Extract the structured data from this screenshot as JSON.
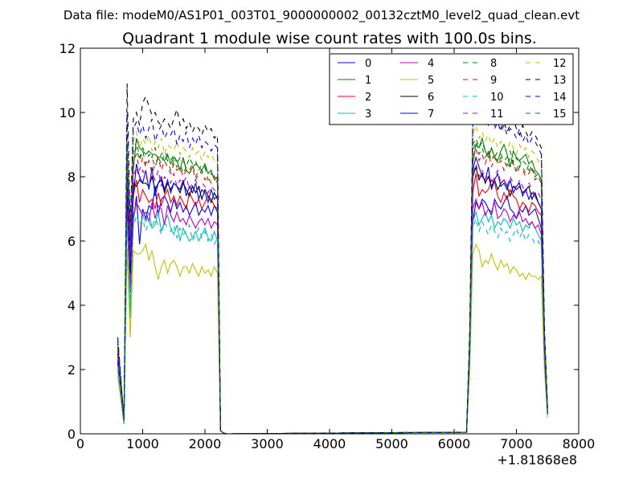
{
  "figure": {
    "suptitle": "Data file: modeM0/AS1P01_003T01_9000000002_00132cztM0_level2_quad_clean.evt",
    "x_offset_label": "+1.81868e8"
  },
  "chart_data": {
    "type": "line",
    "title": "Quadrant 1 module wise count rates with 100.0s bins.",
    "xlabel": "",
    "ylabel": "",
    "x_offset": 181868000,
    "xlim": [
      0,
      8000
    ],
    "ylim": [
      0,
      12
    ],
    "x_ticks": [
      0,
      1000,
      2000,
      3000,
      4000,
      5000,
      6000,
      7000,
      8000
    ],
    "y_ticks": [
      0,
      2,
      4,
      6,
      8,
      10,
      12
    ],
    "x_tick_labels": [
      "0",
      "1000",
      "2000",
      "3000",
      "4000",
      "5000",
      "6000",
      "7000",
      "8000"
    ],
    "y_tick_labels": [
      "0",
      "2",
      "4",
      "6",
      "8",
      "10",
      "12"
    ],
    "grid": false,
    "legend_position": "top-right",
    "legend_columns": 4,
    "x": [
      600,
      700,
      750,
      800,
      850,
      900,
      950,
      1000,
      1050,
      1100,
      1150,
      1200,
      1250,
      1300,
      1350,
      1400,
      1450,
      1500,
      1550,
      1600,
      1650,
      1700,
      1750,
      1800,
      1850,
      1900,
      1950,
      2000,
      2050,
      2100,
      2150,
      2200,
      2250,
      2300,
      2350,
      2400,
      6200,
      6250,
      6300,
      6350,
      6400,
      6450,
      6500,
      6550,
      6600,
      6650,
      6700,
      6750,
      6800,
      6850,
      6900,
      6950,
      7000,
      7050,
      7100,
      7150,
      7200,
      7250,
      7300,
      7350,
      7400,
      7450,
      7500
    ],
    "series": [
      {
        "name": "0",
        "color": "#0000ff",
        "style": "solid",
        "values": [
          2.2,
          0.4,
          7.4,
          4.6,
          6.6,
          7.4,
          5.9,
          7.0,
          6.7,
          7.1,
          7.0,
          7.7,
          6.8,
          7.3,
          7.4,
          7.2,
          6.9,
          7.3,
          7.0,
          7.2,
          6.9,
          7.1,
          6.8,
          7.0,
          7.2,
          6.8,
          7.0,
          6.9,
          7.1,
          6.8,
          7.1,
          6.9,
          0.1,
          0.02,
          0,
          0,
          0.05,
          2.4,
          6.6,
          7.2,
          7.0,
          7.3,
          7.2,
          7.0,
          6.8,
          7.3,
          7.1,
          7.0,
          7.2,
          7.4,
          7.0,
          6.9,
          6.7,
          7.0,
          6.9,
          7.1,
          6.8,
          6.9,
          7.0,
          6.7,
          6.4,
          2.5,
          0.6
        ]
      },
      {
        "name": "1",
        "color": "#008000",
        "style": "solid",
        "values": [
          2.6,
          0.4,
          8.6,
          5.6,
          8.2,
          9.2,
          8.9,
          8.8,
          8.7,
          8.8,
          8.7,
          8.7,
          8.6,
          8.6,
          8.5,
          8.7,
          8.4,
          8.6,
          8.5,
          8.2,
          8.6,
          8.2,
          8.1,
          8.3,
          8.4,
          8.3,
          8.2,
          8.4,
          8.1,
          8.2,
          7.9,
          8.0,
          0.1,
          0.02,
          0,
          0,
          0.05,
          2.8,
          8.4,
          9.0,
          8.9,
          9.2,
          8.8,
          8.6,
          8.9,
          8.6,
          8.5,
          8.8,
          9.0,
          8.7,
          8.3,
          8.8,
          8.6,
          8.5,
          8.6,
          8.7,
          8.4,
          8.5,
          8.2,
          8.1,
          7.9,
          3.0,
          0.7
        ]
      },
      {
        "name": "2",
        "color": "#ff0000",
        "style": "solid",
        "values": [
          2.4,
          0.4,
          8.0,
          4.8,
          7.4,
          7.9,
          7.2,
          7.6,
          7.4,
          7.2,
          7.3,
          7.0,
          7.5,
          7.1,
          7.4,
          7.6,
          7.2,
          7.4,
          7.1,
          7.4,
          7.2,
          7.0,
          7.5,
          7.3,
          7.1,
          7.3,
          7.0,
          7.2,
          7.4,
          7.3,
          7.1,
          7.0,
          0.1,
          0.02,
          0,
          0,
          0.05,
          2.6,
          7.5,
          8.1,
          7.4,
          7.6,
          7.5,
          7.6,
          7.9,
          7.8,
          7.4,
          7.2,
          7.5,
          7.3,
          7.6,
          7.4,
          7.3,
          7.0,
          7.2,
          7.1,
          6.9,
          7.2,
          7.1,
          6.9,
          6.8,
          2.6,
          0.6
        ]
      },
      {
        "name": "3",
        "color": "#00bfbf",
        "style": "solid",
        "values": [
          2.0,
          0.3,
          7.0,
          3.6,
          6.6,
          7.2,
          7.0,
          6.8,
          6.6,
          6.9,
          6.4,
          6.5,
          6.9,
          6.3,
          6.6,
          6.8,
          6.4,
          6.2,
          6.5,
          6.0,
          6.4,
          6.2,
          6.0,
          6.1,
          6.3,
          6.0,
          6.2,
          6.4,
          6.1,
          6.0,
          6.3,
          6.0,
          0.1,
          0.02,
          0,
          0,
          0.05,
          2.3,
          6.6,
          6.9,
          6.5,
          6.7,
          6.9,
          6.6,
          6.8,
          6.4,
          6.6,
          6.5,
          6.7,
          6.6,
          6.4,
          6.7,
          6.5,
          6.6,
          6.3,
          6.5,
          6.4,
          6.6,
          6.4,
          6.2,
          6.0,
          2.3,
          0.6
        ]
      },
      {
        "name": "4",
        "color": "#bf00bf",
        "style": "solid",
        "values": [
          2.3,
          0.4,
          7.2,
          4.4,
          6.8,
          7.2,
          7.0,
          6.8,
          6.9,
          6.6,
          7.2,
          6.7,
          7.1,
          7.0,
          6.5,
          7.1,
          6.8,
          6.6,
          6.9,
          6.6,
          6.7,
          6.5,
          6.8,
          6.6,
          6.4,
          6.6,
          6.7,
          6.5,
          6.7,
          6.4,
          6.6,
          6.5,
          0.1,
          0.02,
          0,
          0,
          0.05,
          2.4,
          7.0,
          7.3,
          7.0,
          7.2,
          6.8,
          7.0,
          6.9,
          7.2,
          6.7,
          6.8,
          7.0,
          6.9,
          6.6,
          6.8,
          6.7,
          6.9,
          6.6,
          6.7,
          6.5,
          6.6,
          6.4,
          6.5,
          6.2,
          2.4,
          0.6
        ]
      },
      {
        "name": "5",
        "color": "#bfbf00",
        "style": "solid",
        "values": [
          1.8,
          0.3,
          5.8,
          3.0,
          5.7,
          5.6,
          5.6,
          5.7,
          5.9,
          5.4,
          5.7,
          5.2,
          4.8,
          5.2,
          5.4,
          5.0,
          5.3,
          5.4,
          5.2,
          4.9,
          5.2,
          5.2,
          5.0,
          5.3,
          5.1,
          4.9,
          5.2,
          5.0,
          5.1,
          4.9,
          5.2,
          5.0,
          0.08,
          0.02,
          0,
          0,
          0.04,
          1.9,
          5.6,
          5.9,
          5.7,
          5.2,
          5.4,
          5.3,
          5.6,
          5.3,
          5.1,
          5.4,
          5.2,
          5.3,
          5.0,
          5.2,
          5.1,
          4.9,
          5.0,
          4.8,
          5.0,
          4.9,
          4.9,
          4.8,
          4.9,
          2.0,
          0.5
        ]
      },
      {
        "name": "6",
        "color": "#000000",
        "style": "solid",
        "values": [
          2.5,
          0.4,
          8.0,
          5.0,
          7.8,
          7.7,
          7.9,
          7.8,
          7.8,
          7.7,
          8.0,
          7.6,
          7.8,
          7.9,
          7.5,
          7.8,
          7.6,
          7.8,
          7.7,
          7.5,
          7.8,
          7.6,
          7.4,
          7.7,
          7.5,
          7.7,
          7.3,
          7.6,
          7.4,
          7.2,
          7.5,
          7.3,
          0.1,
          0.02,
          0,
          0,
          0.05,
          2.6,
          8.0,
          8.3,
          7.9,
          8.1,
          7.8,
          8.0,
          7.7,
          7.9,
          7.6,
          7.8,
          7.9,
          7.7,
          7.4,
          7.7,
          7.6,
          7.7,
          7.5,
          7.6,
          7.7,
          7.3,
          7.5,
          7.2,
          7.0,
          2.6,
          0.6
        ]
      },
      {
        "name": "7",
        "color": "#0000ff",
        "style": "solid",
        "values": [
          2.3,
          0.4,
          7.8,
          5.2,
          7.4,
          8.4,
          8.0,
          7.8,
          8.2,
          7.6,
          8.3,
          7.4,
          7.8,
          8.0,
          7.6,
          7.9,
          7.5,
          7.8,
          7.7,
          7.6,
          7.9,
          7.4,
          7.7,
          7.5,
          7.8,
          7.3,
          7.6,
          7.5,
          7.2,
          7.6,
          7.3,
          7.4,
          0.1,
          0.02,
          0,
          0,
          0.05,
          2.5,
          8.2,
          8.6,
          8.3,
          8.0,
          7.9,
          8.3,
          7.6,
          7.9,
          8.1,
          7.7,
          7.8,
          7.6,
          7.9,
          7.5,
          7.7,
          7.8,
          7.4,
          7.6,
          7.3,
          7.5,
          7.4,
          7.2,
          7.0,
          2.6,
          0.6
        ]
      },
      {
        "name": "8",
        "color": "#008000",
        "style": "dashed",
        "values": [
          2.8,
          0.5,
          9.3,
          6.6,
          8.8,
          9.1,
          8.6,
          8.9,
          8.7,
          8.8,
          8.6,
          8.9,
          8.5,
          8.7,
          8.8,
          8.6,
          8.5,
          8.7,
          8.4,
          8.6,
          8.5,
          8.3,
          8.6,
          8.4,
          8.5,
          8.2,
          8.4,
          8.3,
          8.1,
          8.2,
          8.0,
          7.9,
          0.1,
          0.02,
          0,
          0,
          0.05,
          3.0,
          9.0,
          9.2,
          8.9,
          9.1,
          8.8,
          8.7,
          8.9,
          8.6,
          8.8,
          8.7,
          8.5,
          8.6,
          8.8,
          8.4,
          8.6,
          8.3,
          8.5,
          8.4,
          8.2,
          8.3,
          8.1,
          8.0,
          7.8,
          3.0,
          0.7
        ]
      },
      {
        "name": "9",
        "color": "#ff0000",
        "style": "dashed",
        "values": [
          2.6,
          0.5,
          8.8,
          5.8,
          8.5,
          8.7,
          8.2,
          8.6,
          8.3,
          8.5,
          8.1,
          8.4,
          8.6,
          8.2,
          8.5,
          8.3,
          8.1,
          8.4,
          8.2,
          8.3,
          8.0,
          8.2,
          8.1,
          8.3,
          7.9,
          8.1,
          8.2,
          7.9,
          8.0,
          7.8,
          8.0,
          7.9,
          0.1,
          0.02,
          0,
          0,
          0.05,
          2.8,
          8.6,
          8.9,
          8.5,
          8.7,
          8.4,
          8.8,
          8.3,
          8.6,
          8.4,
          8.5,
          8.2,
          8.4,
          8.3,
          8.5,
          8.1,
          8.3,
          8.2,
          8.0,
          8.1,
          8.3,
          7.9,
          8.0,
          7.8,
          2.9,
          0.7
        ]
      },
      {
        "name": "10",
        "color": "#00bfbf",
        "style": "dashed",
        "values": [
          2.1,
          0.3,
          6.6,
          4.2,
          6.4,
          6.8,
          6.5,
          6.7,
          6.3,
          6.6,
          6.4,
          6.7,
          6.5,
          6.2,
          6.6,
          6.4,
          6.3,
          6.5,
          6.1,
          6.4,
          6.2,
          6.3,
          6.5,
          6.0,
          6.2,
          6.4,
          6.1,
          6.3,
          6.0,
          6.2,
          5.9,
          6.1,
          0.1,
          0.02,
          0,
          0,
          0.05,
          2.2,
          6.4,
          6.7,
          6.3,
          6.6,
          6.4,
          6.2,
          6.5,
          6.3,
          6.1,
          6.4,
          6.2,
          6.3,
          6.0,
          6.2,
          6.4,
          6.1,
          6.3,
          6.0,
          6.2,
          6.1,
          5.9,
          6.0,
          5.8,
          2.2,
          0.6
        ]
      },
      {
        "name": "11",
        "color": "#bf00bf",
        "style": "dashed",
        "values": [
          2.4,
          0.4,
          8.2,
          5.4,
          8.0,
          8.3,
          7.9,
          8.2,
          8.0,
          7.8,
          8.1,
          7.9,
          8.2,
          7.7,
          8.0,
          7.9,
          7.8,
          8.1,
          7.7,
          7.9,
          7.8,
          8.0,
          7.6,
          7.8,
          7.9,
          7.6,
          7.8,
          7.7,
          7.5,
          7.7,
          7.6,
          7.4,
          0.1,
          0.02,
          0,
          0,
          0.05,
          2.6,
          8.1,
          8.4,
          8.0,
          8.2,
          7.9,
          8.1,
          7.8,
          8.0,
          8.2,
          7.8,
          7.9,
          7.7,
          8.0,
          7.8,
          7.6,
          7.9,
          7.7,
          7.5,
          7.8,
          7.6,
          7.4,
          7.5,
          7.3,
          2.7,
          0.6
        ]
      },
      {
        "name": "12",
        "color": "#bfbf00",
        "style": "dashed",
        "values": [
          2.7,
          0.5,
          9.5,
          6.2,
          9.1,
          9.4,
          8.9,
          9.2,
          9.0,
          9.3,
          8.8,
          9.1,
          8.9,
          9.2,
          8.7,
          9.0,
          8.9,
          8.8,
          9.1,
          8.7,
          8.9,
          8.8,
          8.6,
          8.9,
          8.7,
          8.8,
          8.5,
          8.8,
          8.6,
          8.7,
          8.5,
          8.6,
          0.1,
          0.02,
          0,
          0,
          0.05,
          2.9,
          9.3,
          9.6,
          9.2,
          9.4,
          9.1,
          9.3,
          9.0,
          9.2,
          8.9,
          9.1,
          9.0,
          8.8,
          9.1,
          8.9,
          8.7,
          9.0,
          8.8,
          8.9,
          8.6,
          8.8,
          8.7,
          8.5,
          8.3,
          3.1,
          0.7
        ]
      },
      {
        "name": "13",
        "color": "#000000",
        "style": "dashed",
        "values": [
          3.0,
          0.5,
          10.9,
          6.4,
          9.8,
          10.0,
          9.6,
          10.3,
          10.5,
          10.2,
          9.9,
          10.0,
          9.7,
          9.6,
          9.8,
          9.7,
          9.5,
          9.8,
          10.1,
          9.6,
          9.8,
          9.5,
          9.7,
          9.4,
          9.6,
          9.5,
          9.3,
          9.6,
          9.4,
          9.5,
          9.2,
          9.3,
          0.1,
          0.02,
          0,
          0,
          0.05,
          3.2,
          9.8,
          10.1,
          9.9,
          9.8,
          10.0,
          9.7,
          9.9,
          9.6,
          9.8,
          9.5,
          9.7,
          9.4,
          9.6,
          9.8,
          9.5,
          9.3,
          9.6,
          9.4,
          9.2,
          9.4,
          9.3,
          9.1,
          8.9,
          3.3,
          0.8
        ]
      },
      {
        "name": "14",
        "color": "#0000ff",
        "style": "dashed",
        "values": [
          2.9,
          0.5,
          10.0,
          6.0,
          9.5,
          9.7,
          9.3,
          9.6,
          9.2,
          9.5,
          9.8,
          9.1,
          9.4,
          9.6,
          9.2,
          9.4,
          9.3,
          9.5,
          9.0,
          9.3,
          9.1,
          9.4,
          8.9,
          9.2,
          9.0,
          9.3,
          8.9,
          9.1,
          9.0,
          8.8,
          9.0,
          8.9,
          0.1,
          0.02,
          0,
          0,
          0.05,
          3.1,
          9.6,
          10.0,
          10.2,
          9.8,
          9.9,
          9.6,
          9.8,
          9.5,
          9.7,
          9.4,
          9.6,
          9.3,
          9.5,
          9.4,
          9.2,
          9.5,
          9.1,
          9.3,
          9.0,
          9.2,
          9.1,
          8.9,
          8.7,
          3.2,
          0.8
        ]
      },
      {
        "name": "15",
        "color": "#008000",
        "style": "dashed",
        "values": [
          2.7,
          0.5,
          9.0,
          6.3,
          8.7,
          8.9,
          8.5,
          8.8,
          8.4,
          8.7,
          8.6,
          8.3,
          8.6,
          8.4,
          8.7,
          8.5,
          8.2,
          8.5,
          8.3,
          8.4,
          8.1,
          8.3,
          8.2,
          8.4,
          8.0,
          8.2,
          8.1,
          8.3,
          7.9,
          8.1,
          8.0,
          7.8,
          0.1,
          0.02,
          0,
          0,
          0.05,
          2.9,
          8.8,
          9.1,
          8.7,
          8.9,
          8.6,
          8.8,
          8.5,
          8.7,
          8.4,
          8.6,
          8.5,
          8.3,
          8.6,
          8.4,
          8.2,
          8.5,
          8.3,
          8.1,
          8.4,
          8.2,
          8.0,
          8.1,
          7.9,
          3.0,
          0.7
        ]
      }
    ]
  }
}
